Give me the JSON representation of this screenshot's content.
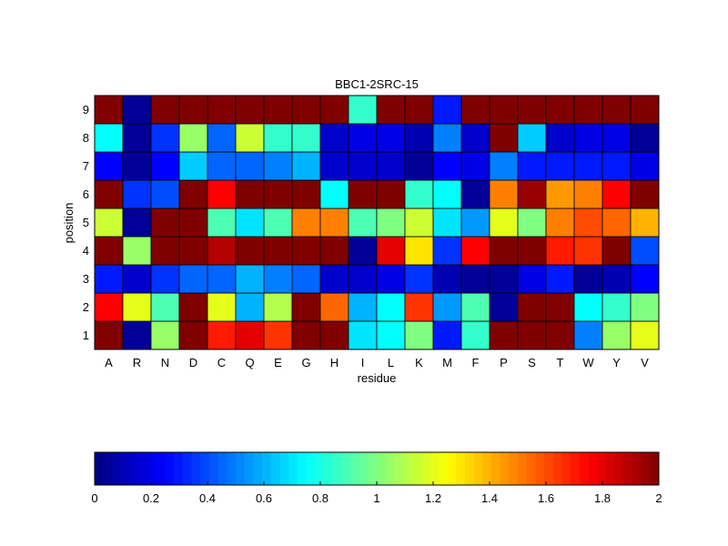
{
  "chart_data": {
    "type": "heatmap",
    "title": "BBC1-2SRC-15",
    "xlabel": "residue",
    "ylabel": "position",
    "x_categories": [
      "A",
      "R",
      "N",
      "D",
      "C",
      "Q",
      "E",
      "G",
      "H",
      "I",
      "L",
      "K",
      "M",
      "F",
      "P",
      "S",
      "T",
      "W",
      "Y",
      "V"
    ],
    "y_categories": [
      "1",
      "2",
      "3",
      "4",
      "5",
      "6",
      "7",
      "8",
      "9"
    ],
    "value_range": [
      0,
      2
    ],
    "colormap": "jet",
    "colorbar": {
      "orientation": "horizontal",
      "placement": "below",
      "ticks": [
        0,
        0.2,
        0.4,
        0.6,
        0.8,
        1,
        1.2,
        1.4,
        1.6,
        1.8,
        2
      ],
      "tick_labels": [
        "0",
        "0.2",
        "0.4",
        "0.6",
        "0.8",
        "1",
        "1.2",
        "1.4",
        "1.6",
        "1.8",
        "2"
      ]
    },
    "values_by_position": {
      "9": [
        2.0,
        0.05,
        2.0,
        2.0,
        2.0,
        2.0,
        2.0,
        2.0,
        2.0,
        0.85,
        2.0,
        2.0,
        0.3,
        2.0,
        2.0,
        2.0,
        2.0,
        2.0,
        2.0,
        2.0
      ],
      "8": [
        0.75,
        0.05,
        0.35,
        1.05,
        0.45,
        1.15,
        0.85,
        0.85,
        0.15,
        0.2,
        0.2,
        0.1,
        0.5,
        0.15,
        2.0,
        0.65,
        0.15,
        0.2,
        0.2,
        0.05
      ],
      "7": [
        0.25,
        0.05,
        0.25,
        0.65,
        0.45,
        0.45,
        0.5,
        0.6,
        0.15,
        0.15,
        0.15,
        0.05,
        0.25,
        0.2,
        0.5,
        0.3,
        0.3,
        0.3,
        0.3,
        0.2
      ],
      "6": [
        2.0,
        0.35,
        0.4,
        2.0,
        1.75,
        2.0,
        2.0,
        2.0,
        0.75,
        2.0,
        2.0,
        0.85,
        0.75,
        0.05,
        1.5,
        1.95,
        1.45,
        1.5,
        1.75,
        2.0
      ],
      "5": [
        1.15,
        0.05,
        2.0,
        2.0,
        0.9,
        0.7,
        0.9,
        1.5,
        1.5,
        0.9,
        1.0,
        1.15,
        0.7,
        0.55,
        1.2,
        1.0,
        1.5,
        1.6,
        1.55,
        1.4
      ],
      "4": [
        2.0,
        1.05,
        2.0,
        2.0,
        1.9,
        2.0,
        2.0,
        2.0,
        2.0,
        0.05,
        1.8,
        1.3,
        0.35,
        1.75,
        2.0,
        2.0,
        1.7,
        1.65,
        2.0,
        0.4
      ],
      "3": [
        0.3,
        0.15,
        0.35,
        0.45,
        0.45,
        0.6,
        0.5,
        0.45,
        0.15,
        0.15,
        0.2,
        0.35,
        0.1,
        0.05,
        0.05,
        0.2,
        0.3,
        0.05,
        0.1,
        0.25
      ],
      "2": [
        1.75,
        1.2,
        0.9,
        2.0,
        1.2,
        0.6,
        1.1,
        2.0,
        1.55,
        0.6,
        0.75,
        1.65,
        0.55,
        0.9,
        0.05,
        2.0,
        2.0,
        0.75,
        0.85,
        1.0
      ],
      "1": [
        2.0,
        0.05,
        1.05,
        2.0,
        1.7,
        1.8,
        1.65,
        2.0,
        2.0,
        0.7,
        0.75,
        1.0,
        0.3,
        0.85,
        2.0,
        2.0,
        2.0,
        0.5,
        1.05,
        1.2
      ]
    }
  }
}
